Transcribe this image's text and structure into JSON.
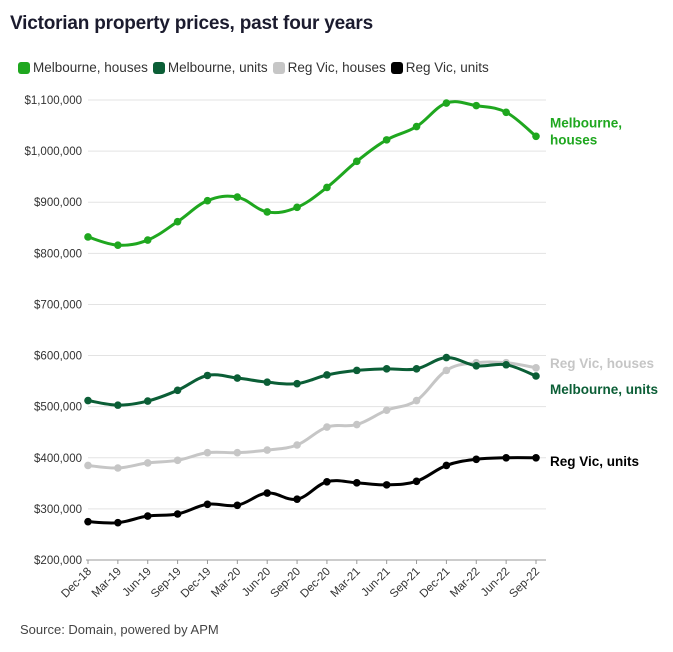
{
  "title": "Victorian property prices, past four years",
  "source": "Source: Domain, powered by APM",
  "legend": [
    {
      "label": "Melbourne, houses",
      "color": "#1fa71f"
    },
    {
      "label": "Melbourne, units",
      "color": "#0b5e36"
    },
    {
      "label": "Reg Vic, houses",
      "color": "#c6c6c6"
    },
    {
      "label": "Reg Vic, units",
      "color": "#000000"
    }
  ],
  "chart_data": {
    "type": "line",
    "title": "Victorian property prices, past four years",
    "xlabel": "",
    "ylabel": "",
    "categories": [
      "Dec-18",
      "Mar-19",
      "Jun-19",
      "Sep-19",
      "Dec-19",
      "Mar-20",
      "Jun-20",
      "Sep-20",
      "Dec-20",
      "Mar-21",
      "Jun-21",
      "Sep-21",
      "Dec-21",
      "Mar-22",
      "Jun-22",
      "Sep-22"
    ],
    "ylim": [
      200000,
      1100000
    ],
    "yticks": [
      200000,
      300000,
      400000,
      500000,
      600000,
      700000,
      800000,
      900000,
      1000000,
      1100000
    ],
    "ytick_labels": [
      "$200,000",
      "$300,000",
      "$400,000",
      "$500,000",
      "$600,000",
      "$700,000",
      "$800,000",
      "$900,000",
      "$1,000,000",
      "$1,100,000"
    ],
    "grid": true,
    "legend_position": "top-left",
    "series": [
      {
        "name": "Melbourne, houses",
        "color": "#1fa71f",
        "end_label": [
          "Melbourne,",
          "houses"
        ],
        "values": [
          832000,
          816000,
          826000,
          862000,
          903000,
          910000,
          881000,
          890000,
          929000,
          980000,
          1022000,
          1048000,
          1094000,
          1089000,
          1076000,
          1029000
        ]
      },
      {
        "name": "Melbourne, units",
        "color": "#0b5e36",
        "end_label": [
          "Melbourne, units"
        ],
        "values": [
          512000,
          503000,
          511000,
          532000,
          561000,
          556000,
          548000,
          545000,
          562000,
          571000,
          574000,
          574000,
          596000,
          580000,
          582000,
          560000
        ]
      },
      {
        "name": "Reg Vic, houses",
        "color": "#c6c6c6",
        "end_label": [
          "Reg Vic, houses"
        ],
        "values": [
          385000,
          380000,
          390000,
          395000,
          410000,
          410000,
          415000,
          425000,
          460000,
          465000,
          493000,
          512000,
          571000,
          586000,
          586000,
          576000
        ]
      },
      {
        "name": "Reg Vic, units",
        "color": "#000000",
        "end_label": [
          "Reg Vic, units"
        ],
        "values": [
          275000,
          273000,
          286000,
          290000,
          309000,
          307000,
          331000,
          319000,
          353000,
          351000,
          347000,
          354000,
          385000,
          397000,
          400000,
          400000
        ]
      }
    ]
  }
}
